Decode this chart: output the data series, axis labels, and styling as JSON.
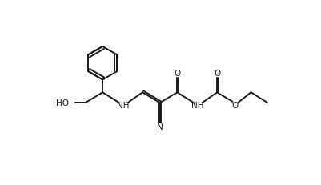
{
  "bg_color": "#ffffff",
  "line_color": "#1a1a1a",
  "lw": 1.4,
  "figsize": [
    4.02,
    2.32
  ],
  "dpi": 100,
  "xlim": [
    0,
    10.5
  ],
  "ylim": [
    0,
    6.2
  ]
}
